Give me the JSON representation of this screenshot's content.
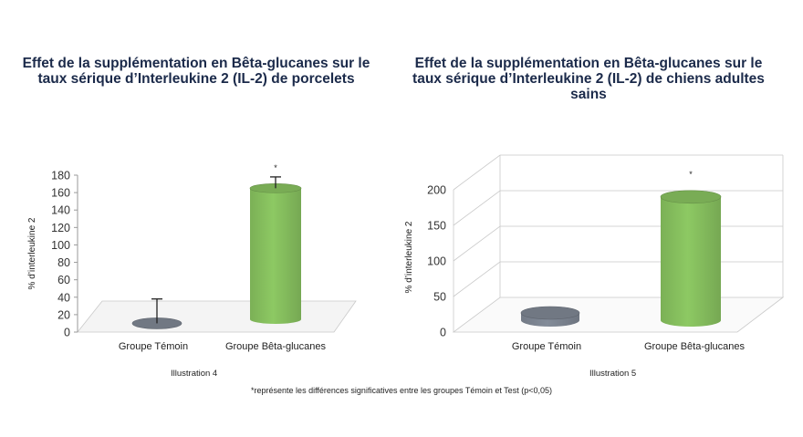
{
  "chart_data": [
    {
      "type": "bar",
      "title": "Effet de la supplémentation en Bêta-glucanes sur le taux sérique d’Interleukine 2 (IL-2) de porcelets",
      "ylabel": "% d’interleukine 2",
      "xlabel": "",
      "categories": [
        "Groupe Témoin",
        "Groupe Bêta-glucanes"
      ],
      "values": [
        10,
        165
      ],
      "error_upper": [
        38,
        178
      ],
      "annotations": [
        "",
        "*"
      ],
      "yticks": [
        0,
        20,
        40,
        60,
        80,
        100,
        120,
        140,
        160,
        180
      ],
      "ylim": [
        0,
        180
      ],
      "colors": [
        "#7d8592",
        "#86bf5e"
      ],
      "caption": "Illustration 4",
      "grid": false
    },
    {
      "type": "bar",
      "title": "Effet de la supplémentation en Bêta-glucanes sur le taux sérique d’Interleukine 2 (IL-2) de chiens adultes sains",
      "ylabel": "% d’interleukine 2",
      "xlabel": "",
      "categories": [
        "Groupe Témoin",
        "Groupe Bêta-glucanes"
      ],
      "values": [
        5,
        190
      ],
      "annotations": [
        "",
        "*"
      ],
      "yticks": [
        0,
        50,
        100,
        150,
        200
      ],
      "ylim": [
        0,
        200
      ],
      "colors": [
        "#7d8592",
        "#86bf5e"
      ],
      "caption": "Illustration 5",
      "grid": true
    }
  ],
  "footnote": "*représente les différences significatives entre les groupes Témoin et Test (p<0,05)"
}
